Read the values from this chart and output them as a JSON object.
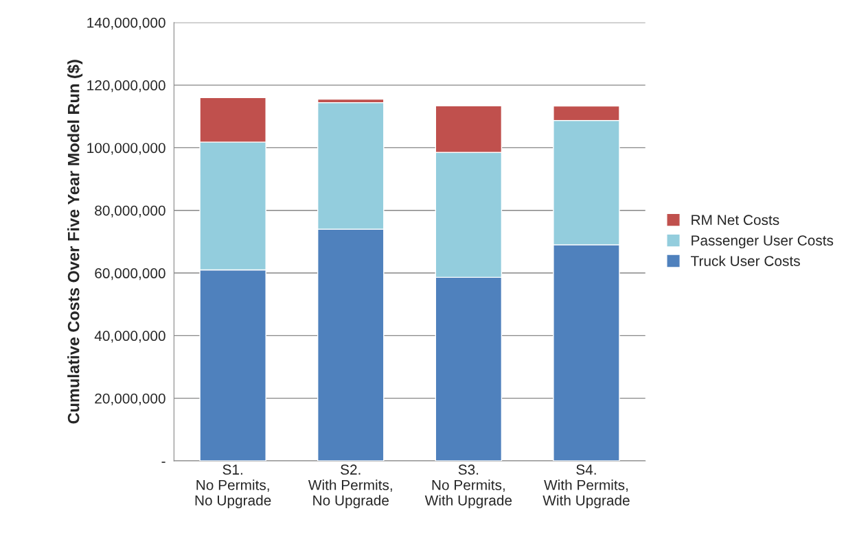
{
  "chart_data": {
    "type": "bar",
    "stacked": true,
    "ylabel": "Cumulative Costs Over Five Year Model Run ($)",
    "categories": [
      "S1.\nNo Permits,\nNo Upgrade",
      "S2.\nWith Permits,\nNo Upgrade",
      "S3.\nNo Permits,\nWith Upgrade",
      "S4.\nWith Permits,\nWith Upgrade"
    ],
    "series": [
      {
        "name": "Truck User Costs",
        "color": "#4f81bd",
        "values": [
          61000000,
          74000000,
          58600000,
          69000000
        ]
      },
      {
        "name": "Passenger User Costs",
        "color": "#93cddd",
        "values": [
          40800000,
          40400000,
          39900000,
          39700000
        ]
      },
      {
        "name": "RM Net Costs",
        "color": "#c0504d",
        "values": [
          14200000,
          1100000,
          14900000,
          4600000
        ]
      }
    ],
    "ylim": [
      0,
      140000000
    ],
    "yticks": [
      {
        "value": 0,
        "label": "-"
      },
      {
        "value": 20000000,
        "label": "20,000,000"
      },
      {
        "value": 40000000,
        "label": "40,000,000"
      },
      {
        "value": 60000000,
        "label": "60,000,000"
      },
      {
        "value": 80000000,
        "label": "80,000,000"
      },
      {
        "value": 100000000,
        "label": "100,000,000"
      },
      {
        "value": 120000000,
        "label": "120,000,000"
      },
      {
        "value": 140000000,
        "label": "140,000,000"
      }
    ],
    "grid": "y",
    "legend": "right"
  }
}
